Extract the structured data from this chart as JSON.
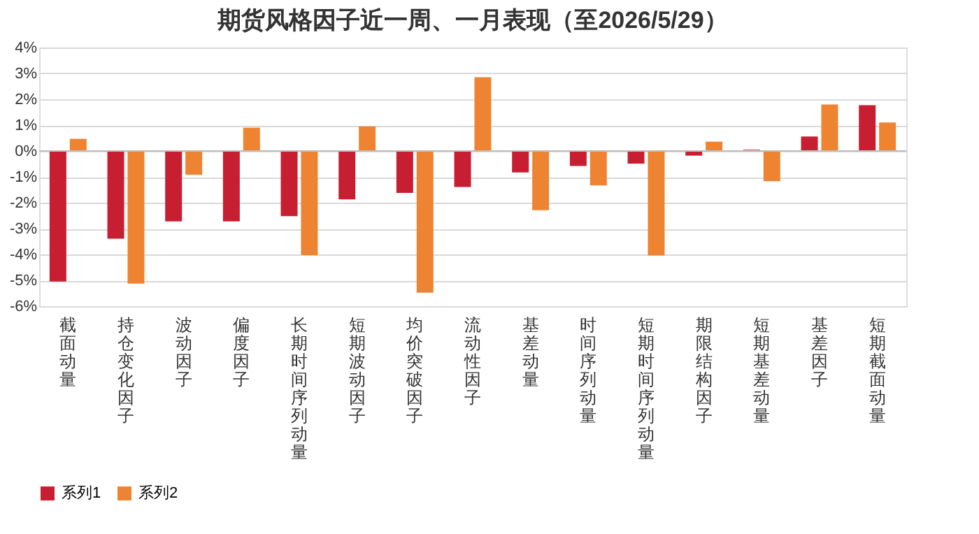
{
  "chart_data": {
    "type": "bar",
    "title": "期货风格因子近一周、一月表现（至2026/5/29）",
    "categories": [
      "截面动量",
      "持仓变化因子",
      "波动因子",
      "偏度因子",
      "长期时间序列动量",
      "短期波动因子",
      "均价突破因子",
      "流动性因子",
      "基差动量",
      "时间序列动量",
      "短期时间序列动量",
      "期限结构因子",
      "短期基差动量",
      "基差因子",
      "短期截面动量"
    ],
    "series": [
      {
        "name": "系列1",
        "color": "#c81e32",
        "values": [
          -5.05,
          -3.39,
          -2.72,
          -2.72,
          -2.52,
          -1.87,
          -1.62,
          -1.39,
          -0.83,
          -0.58,
          -0.49,
          -0.18,
          0.05,
          0.56,
          1.77
        ]
      },
      {
        "name": "系列2",
        "color": "#ee8431",
        "values": [
          0.47,
          -5.13,
          -0.92,
          0.9,
          -4.03,
          0.95,
          -5.48,
          2.85,
          -2.29,
          -1.33,
          -4.04,
          0.36,
          -1.17,
          1.8,
          1.1
        ]
      }
    ],
    "ylim": [
      -6,
      4
    ],
    "yticks": [
      {
        "value": 4,
        "label": "4%"
      },
      {
        "value": 3,
        "label": "3%"
      },
      {
        "value": 2,
        "label": "2%"
      },
      {
        "value": 1,
        "label": "1%"
      },
      {
        "value": 0,
        "label": "0%"
      },
      {
        "value": -1,
        "label": "-1%"
      },
      {
        "value": -2,
        "label": "-2%"
      },
      {
        "value": -3,
        "label": "-3%"
      },
      {
        "value": -4,
        "label": "-4%"
      },
      {
        "value": -5,
        "label": "-5%"
      },
      {
        "value": -6,
        "label": "-6%"
      }
    ],
    "grid": "y",
    "legend": "bottom"
  }
}
